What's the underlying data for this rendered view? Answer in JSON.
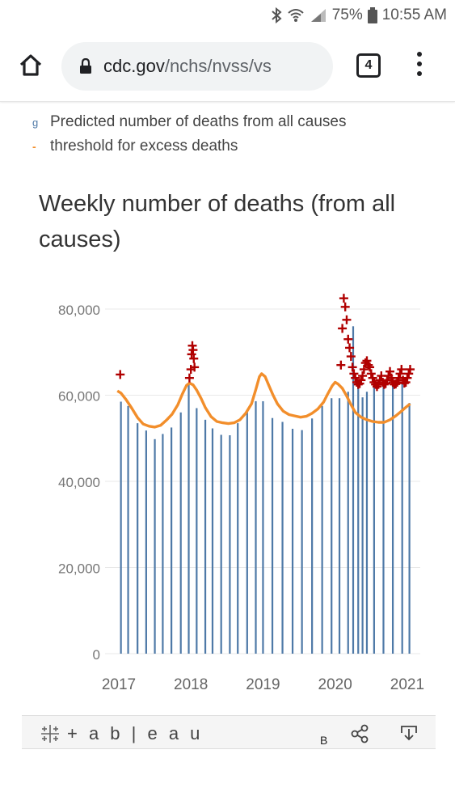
{
  "status": {
    "battery": "75%",
    "time": "10:55 AM",
    "icons": [
      "bluetooth-icon",
      "wifi-icon",
      "signal-icon",
      "battery-icon"
    ]
  },
  "browser": {
    "url_domain": "cdc.gov",
    "url_path": "/nchs/nvss/vs",
    "tab_count": "4"
  },
  "legend": {
    "predicted_marker": "g",
    "predicted_label": "Predicted number of deaths from all causes",
    "threshold_marker": "-",
    "threshold_label": "threshold for excess deaths"
  },
  "title": "Weekly number of deaths (from all causes)",
  "footer": {
    "logo_text": "+ a b | e a u",
    "stray_letter": "B"
  },
  "colors": {
    "bar": "#4e79a7",
    "threshold": "#f28e2b",
    "excess_marker": "#b00000",
    "grid": "#e8e8e8"
  },
  "chart_data": {
    "type": "bar",
    "ylim": [
      0,
      80000
    ],
    "yticks": [
      "80,000",
      "60,000",
      "40,000",
      "20,000",
      "0"
    ],
    "xticks": [
      "2017",
      "2018",
      "2019",
      "2020",
      "2021"
    ],
    "year_ticks": [
      2017,
      2018,
      2019,
      2020,
      2021
    ],
    "bars": {
      "x": [
        2017.05,
        2017.15,
        2017.28,
        2017.4,
        2017.52,
        2017.63,
        2017.75,
        2017.88,
        2017.99,
        2018.1,
        2018.22,
        2018.32,
        2018.44,
        2018.56,
        2018.67,
        2018.8,
        2018.92,
        2019.02,
        2019.15,
        2019.29,
        2019.43,
        2019.56,
        2019.7,
        2019.84,
        2019.97,
        2020.08,
        2020.2,
        2020.27,
        2020.34,
        2020.4,
        2020.46,
        2020.56,
        2020.69,
        2020.82,
        2020.95,
        2021.05
      ],
      "values": [
        58500,
        57500,
        53500,
        51800,
        49800,
        51000,
        52500,
        56000,
        62500,
        57000,
        54300,
        52300,
        50800,
        50700,
        53500,
        56200,
        58600,
        58600,
        54700,
        53800,
        52200,
        51900,
        54600,
        57500,
        59300,
        59300,
        60800,
        76000,
        63500,
        59500,
        60800,
        62500,
        62800,
        63500,
        62800,
        58200
      ]
    },
    "threshold": {
      "x": [
        2017.0,
        2017.05,
        2017.12,
        2017.2,
        2017.28,
        2017.36,
        2017.44,
        2017.52,
        2017.6,
        2017.68,
        2017.76,
        2017.84,
        2017.9,
        2017.96,
        2018.0,
        2018.05,
        2018.1,
        2018.16,
        2018.22,
        2018.3,
        2018.38,
        2018.46,
        2018.54,
        2018.62,
        2018.7,
        2018.78,
        2018.86,
        2018.92,
        2018.97,
        2019.0,
        2019.05,
        2019.1,
        2019.16,
        2019.22,
        2019.3,
        2019.38,
        2019.46,
        2019.54,
        2019.62,
        2019.7,
        2019.78,
        2019.86,
        2019.92,
        2019.98,
        2020.02,
        2020.06,
        2020.12,
        2020.18,
        2020.24,
        2020.3,
        2020.38,
        2020.46,
        2020.54,
        2020.62,
        2020.7,
        2020.78,
        2020.86,
        2020.94,
        2021.0,
        2021.06
      ],
      "values": [
        61000,
        60500,
        59000,
        57000,
        54800,
        53300,
        52800,
        52600,
        53000,
        54200,
        55600,
        57800,
        60200,
        62300,
        62800,
        62400,
        61200,
        59300,
        57100,
        55000,
        53900,
        53600,
        53400,
        53600,
        54300,
        55800,
        58000,
        61300,
        64300,
        65000,
        64300,
        62300,
        60000,
        58000,
        56300,
        55500,
        55200,
        54900,
        55100,
        55800,
        56800,
        58400,
        60400,
        62200,
        63000,
        62600,
        61600,
        59800,
        57800,
        56000,
        54900,
        54300,
        53900,
        53700,
        53700,
        54300,
        55200,
        56300,
        57200,
        58000
      ]
    },
    "excess_markers": {
      "x": [
        2017.04,
        2018.0,
        2018.02,
        2018.03,
        2018.04,
        2018.05,
        2018.06,
        2018.07,
        2020.1,
        2020.12,
        2020.14,
        2020.16,
        2020.18,
        2020.2,
        2020.22,
        2020.24,
        2020.26,
        2020.28,
        2020.3,
        2020.32,
        2020.34,
        2020.36,
        2020.38,
        2020.4,
        2020.42,
        2020.44,
        2020.46,
        2020.48,
        2020.5,
        2020.52,
        2020.54,
        2020.56,
        2020.58,
        2020.6,
        2020.62,
        2020.64,
        2020.66,
        2020.68,
        2020.7,
        2020.72,
        2020.74,
        2020.76,
        2020.78,
        2020.8,
        2020.82,
        2020.84,
        2020.86,
        2020.88,
        2020.9,
        2020.92,
        2020.94,
        2020.96,
        2020.98,
        2021.0,
        2021.02,
        2021.04,
        2021.06
      ],
      "values": [
        64800,
        64000,
        66000,
        69500,
        71500,
        70500,
        68500,
        66500,
        67000,
        75500,
        82500,
        80500,
        77500,
        73000,
        71000,
        69000,
        66500,
        65000,
        64000,
        63000,
        62500,
        62700,
        63500,
        64500,
        66000,
        67500,
        68000,
        67000,
        66500,
        65000,
        64000,
        63000,
        62500,
        62000,
        62500,
        63500,
        64500,
        63000,
        62500,
        62700,
        63500,
        64500,
        65500,
        64000,
        63000,
        62500,
        62600,
        63000,
        64000,
        65000,
        66000,
        63500,
        62800,
        63000,
        64000,
        65000,
        66000
      ]
    }
  }
}
